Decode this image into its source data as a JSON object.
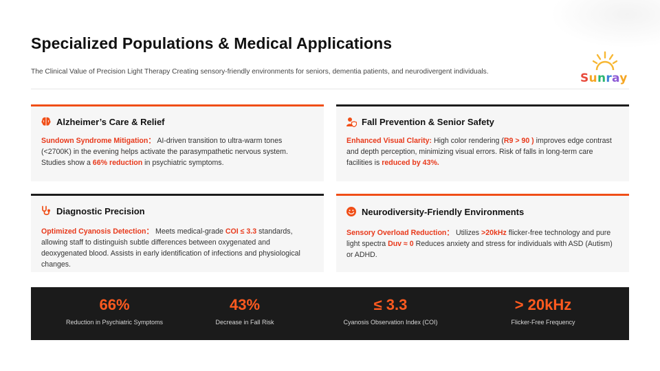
{
  "header": {
    "title": "Specialized Populations & Medical Applications",
    "subtitle": "The Clinical Value of Precision Light Therapy Creating sensory-friendly environments for seniors, dementia patients, and neurodivergent individuals."
  },
  "logo": {
    "letters": [
      "S",
      "u",
      "n",
      "r",
      "a",
      "y"
    ],
    "colors": [
      "#e84a3c",
      "#f5a623",
      "#2bb673",
      "#3d7fd9",
      "#8e5bd6",
      "#f5a623"
    ]
  },
  "cards": {
    "alzheimers": {
      "title": "Alzheimer’s Care & Relief",
      "icon": "brain-icon",
      "lead": "Sundown Syndrome Mitigation：",
      "text1": " AI-driven transition to ultra-warm tones (<2700K) in the evening helps activate the parasympathetic nervous system. Studies show a ",
      "highlight": "66% reduction",
      "text2": " in psychiatric symptoms."
    },
    "fall": {
      "title": "Fall Prevention & Senior Safety",
      "icon": "person-shield-icon",
      "lead": "Enhanced Visual Clarity:",
      "text1": "  High color rendering (",
      "highlight1": "R9 > 90 )",
      "text2": " improves edge contrast and depth perception, minimizing visual errors. Risk of falls in long-term care facilities is ",
      "highlight2": "reduced by 43%."
    },
    "diagnostic": {
      "title": "Diagnostic Precision",
      "icon": "stethoscope-icon",
      "lead": "Optimized Cyanosis Detection：",
      "text1": " Meets medical-grade ",
      "highlight": "COI ≤ 3.3",
      "text2": " standards, allowing staff to distinguish subtle differences between oxygenated and deoxygenated blood. Assists in early identification of infections and physiological changes."
    },
    "neuro": {
      "title": "Neurodiversity-Friendly Environments",
      "icon": "smile-icon",
      "lead": "Sensory Overload Reduction：",
      "text1": " Utilizes ",
      "highlight1": ">20kHz",
      "text2": " flicker-free technology and pure light spectra ",
      "highlight2": "Duv ≈ 0",
      "text3": "  Reduces anxiety and stress for individuals with ASD (Autism) or ADHD."
    }
  },
  "stats": [
    {
      "value": "66%",
      "label": "Reduction in Psychiatric Symptoms"
    },
    {
      "value": "43%",
      "label": "Decrease in Fall Risk"
    },
    {
      "value": "≤ 3.3",
      "label": "Cyanosis Observation Index (COI)"
    },
    {
      "value": "> 20kHz",
      "label": "Flicker-Free Frequency"
    }
  ]
}
